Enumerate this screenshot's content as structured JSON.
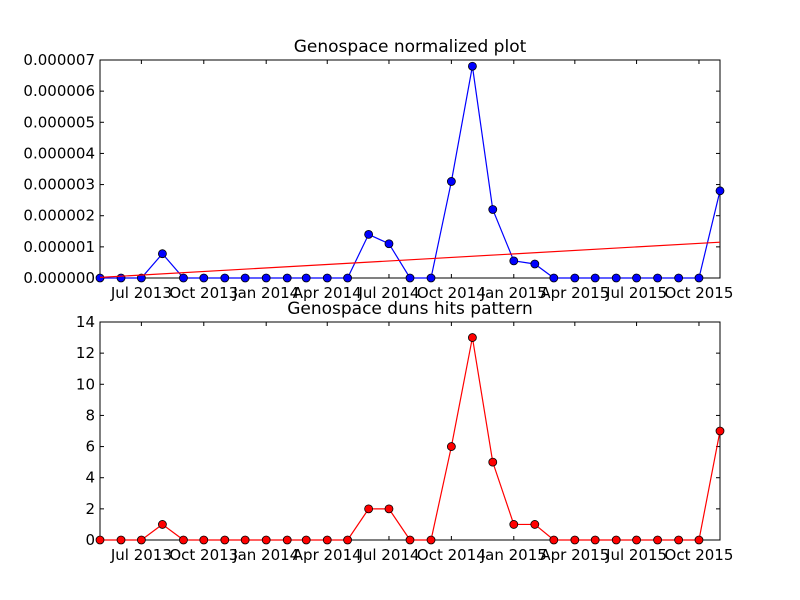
{
  "chart_data": [
    {
      "type": "line",
      "title": "Genospace normalized plot",
      "xlabel": "",
      "ylabel": "",
      "x": [
        "2013-05-01",
        "2013-06-01",
        "2013-07-01",
        "2013-08-01",
        "2013-09-01",
        "2013-10-01",
        "2013-11-01",
        "2013-12-01",
        "2014-01-01",
        "2014-02-01",
        "2014-03-01",
        "2014-04-01",
        "2014-05-01",
        "2014-06-01",
        "2014-07-01",
        "2014-08-01",
        "2014-09-01",
        "2014-10-01",
        "2014-11-01",
        "2014-12-01",
        "2015-01-01",
        "2015-02-01",
        "2015-03-01",
        "2015-04-01",
        "2015-05-01",
        "2015-06-01",
        "2015-07-01",
        "2015-08-01",
        "2015-09-01",
        "2015-10-01",
        "2015-11-01"
      ],
      "xlim": [
        "2013-05-01",
        "2015-11-01"
      ],
      "ylim": [
        0,
        7e-06
      ],
      "xticks": [
        {
          "date": "2013-07-01",
          "label": "Jul 2013"
        },
        {
          "date": "2013-10-01",
          "label": "Oct 2013"
        },
        {
          "date": "2014-01-01",
          "label": "Jan 2014"
        },
        {
          "date": "2014-04-01",
          "label": "Apr 2014"
        },
        {
          "date": "2014-07-01",
          "label": "Jul 2014"
        },
        {
          "date": "2014-10-01",
          "label": "Oct 2014"
        },
        {
          "date": "2015-01-01",
          "label": "Jan 2015"
        },
        {
          "date": "2015-04-01",
          "label": "Apr 2015"
        },
        {
          "date": "2015-07-01",
          "label": "Jul 2015"
        },
        {
          "date": "2015-10-01",
          "label": "Oct 2015"
        }
      ],
      "yticks": [
        {
          "value": 0,
          "label": "0.000000"
        },
        {
          "value": 1e-06,
          "label": "0.000001"
        },
        {
          "value": 2e-06,
          "label": "0.000002"
        },
        {
          "value": 3e-06,
          "label": "0.000003"
        },
        {
          "value": 4e-06,
          "label": "0.000004"
        },
        {
          "value": 5e-06,
          "label": "0.000005"
        },
        {
          "value": 6e-06,
          "label": "0.000006"
        },
        {
          "value": 7e-06,
          "label": "0.000007"
        }
      ],
      "series": [
        {
          "style": "line-markers",
          "color": "#0000ff",
          "values": [
            0,
            0,
            0,
            7.8e-07,
            0,
            0,
            0,
            0,
            0,
            0,
            0,
            0,
            0,
            1.4e-06,
            1.1e-06,
            0,
            0,
            3.1e-06,
            6.8e-06,
            2.2e-06,
            5.5e-07,
            4.5e-07,
            0,
            0,
            0,
            0,
            0,
            0,
            0,
            0,
            2.8e-06
          ]
        },
        {
          "style": "line",
          "color": "#ff0000",
          "x": [
            "2013-05-01",
            "2015-11-01"
          ],
          "values": [
            2e-08,
            1.15e-06
          ]
        }
      ],
      "grid": false,
      "legend": "none"
    },
    {
      "type": "line",
      "title": "Genospace duns hits pattern",
      "xlabel": "",
      "ylabel": "",
      "x": [
        "2013-05-01",
        "2013-06-01",
        "2013-07-01",
        "2013-08-01",
        "2013-09-01",
        "2013-10-01",
        "2013-11-01",
        "2013-12-01",
        "2014-01-01",
        "2014-02-01",
        "2014-03-01",
        "2014-04-01",
        "2014-05-01",
        "2014-06-01",
        "2014-07-01",
        "2014-08-01",
        "2014-09-01",
        "2014-10-01",
        "2014-11-01",
        "2014-12-01",
        "2015-01-01",
        "2015-02-01",
        "2015-03-01",
        "2015-04-01",
        "2015-05-01",
        "2015-06-01",
        "2015-07-01",
        "2015-08-01",
        "2015-09-01",
        "2015-10-01",
        "2015-11-01"
      ],
      "xlim": [
        "2013-05-01",
        "2015-11-01"
      ],
      "ylim": [
        0,
        14
      ],
      "xticks": [
        {
          "date": "2013-07-01",
          "label": "Jul 2013"
        },
        {
          "date": "2013-10-01",
          "label": "Oct 2013"
        },
        {
          "date": "2014-01-01",
          "label": "Jan 2014"
        },
        {
          "date": "2014-04-01",
          "label": "Apr 2014"
        },
        {
          "date": "2014-07-01",
          "label": "Jul 2014"
        },
        {
          "date": "2014-10-01",
          "label": "Oct 2014"
        },
        {
          "date": "2015-01-01",
          "label": "Jan 2015"
        },
        {
          "date": "2015-04-01",
          "label": "Apr 2015"
        },
        {
          "date": "2015-07-01",
          "label": "Jul 2015"
        },
        {
          "date": "2015-10-01",
          "label": "Oct 2015"
        }
      ],
      "yticks": [
        {
          "value": 0,
          "label": "0"
        },
        {
          "value": 2,
          "label": "2"
        },
        {
          "value": 4,
          "label": "4"
        },
        {
          "value": 6,
          "label": "6"
        },
        {
          "value": 8,
          "label": "8"
        },
        {
          "value": 10,
          "label": "10"
        },
        {
          "value": 12,
          "label": "12"
        },
        {
          "value": 14,
          "label": "14"
        }
      ],
      "series": [
        {
          "style": "line-markers",
          "color": "#ff0000",
          "values": [
            0,
            0,
            0,
            1,
            0,
            0,
            0,
            0,
            0,
            0,
            0,
            0,
            0,
            2,
            2,
            0,
            0,
            6,
            13,
            5,
            1,
            1,
            0,
            0,
            0,
            0,
            0,
            0,
            0,
            0,
            7
          ]
        }
      ],
      "grid": false,
      "legend": "none"
    }
  ]
}
